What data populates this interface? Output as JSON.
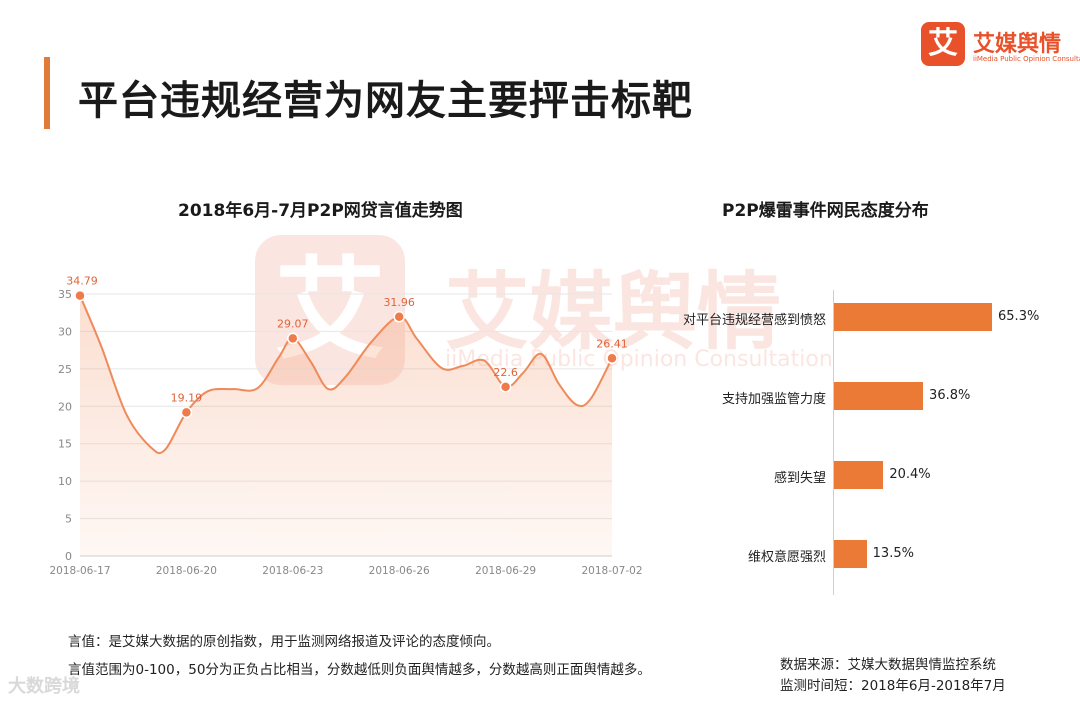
{
  "page": {
    "title": "平台违规经营为网友主要抨击标靶",
    "logo_mark": "艾",
    "logo_name": "艾媒舆情",
    "logo_sub": "iiMedia Public Opinion Consultation",
    "watermark_mark": "艾",
    "watermark_name": "艾媒舆情",
    "watermark_sub": "iiMedia Public Opinion Consultation",
    "note_line1": "言值：是艾媒大数据的原创指数，用于监测网络报道及评论的态度倾向。",
    "note_line2": "言值范围为0-100，50分为正负占比相当，分数越低则负面舆情越多，分数越高则正面舆情越多。",
    "source_line1": "数据来源：艾媒大数据舆情监控系统",
    "source_line2": "监测时间短：2018年6月-2018年7月",
    "footer_watermark": "大数跨境",
    "accent_color": "#e07b39",
    "bar_color": "#ec7a37"
  },
  "chart_data": [
    {
      "type": "line",
      "title": "2018年6月-7月P2P网贷言值走势图",
      "xlabel": "",
      "ylabel": "",
      "ylim": [
        0,
        35
      ],
      "yticks": [
        0,
        5,
        10,
        15,
        20,
        25,
        30,
        35
      ],
      "xtick_labels": [
        "2018-06-17",
        "2018-06-20",
        "2018-06-23",
        "2018-06-26",
        "2018-06-29",
        "2018-07-02"
      ],
      "x": [
        0,
        3,
        6,
        9,
        12,
        15
      ],
      "points": [
        {
          "x": 0,
          "y": 34.79,
          "label": "34.79"
        },
        {
          "x": 3,
          "y": 19.19,
          "label": "19.19"
        },
        {
          "x": 6,
          "y": 29.07,
          "label": "29.07"
        },
        {
          "x": 9,
          "y": 31.96,
          "label": "31.96"
        },
        {
          "x": 12,
          "y": 22.6,
          "label": "22.6"
        },
        {
          "x": 15,
          "y": 26.41,
          "label": "26.41"
        }
      ],
      "curve": [
        [
          0,
          34.79
        ],
        [
          0.6,
          28
        ],
        [
          1.3,
          19
        ],
        [
          2.0,
          14.5
        ],
        [
          2.4,
          14.2
        ],
        [
          3,
          19.19
        ],
        [
          3.6,
          22
        ],
        [
          4.3,
          22.3
        ],
        [
          5.0,
          22.4
        ],
        [
          5.6,
          26.5
        ],
        [
          6,
          29.07
        ],
        [
          6.5,
          26
        ],
        [
          7.0,
          22.3
        ],
        [
          7.5,
          24
        ],
        [
          8.2,
          28.5
        ],
        [
          9,
          31.96
        ],
        [
          9.5,
          29
        ],
        [
          10.2,
          25.1
        ],
        [
          10.8,
          25.4
        ],
        [
          11.4,
          26.1
        ],
        [
          12,
          22.6
        ],
        [
          12.5,
          24.5
        ],
        [
          13.0,
          27
        ],
        [
          13.5,
          23
        ],
        [
          14.0,
          20.2
        ],
        [
          14.4,
          21
        ],
        [
          15,
          26.41
        ]
      ],
      "grid": true,
      "fill": true
    },
    {
      "type": "bar",
      "orientation": "horizontal",
      "title": "P2P爆雷事件网民态度分布",
      "categories": [
        "对平台违规经营感到愤怒",
        "支持加强监管力度",
        "感到失望",
        "维权意愿强烈"
      ],
      "values": [
        65.3,
        36.8,
        20.4,
        13.5
      ],
      "value_labels": [
        "65.3%",
        "36.8%",
        "20.4%",
        "13.5%"
      ],
      "unit": "%"
    }
  ]
}
